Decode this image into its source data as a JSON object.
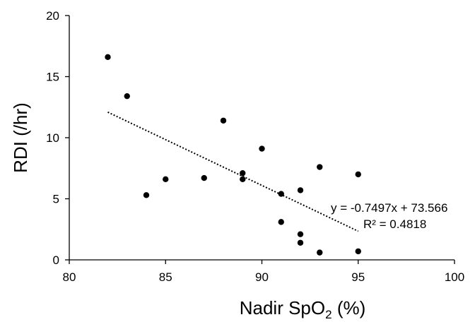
{
  "chart_data": {
    "type": "scatter",
    "title": "",
    "xlabel": {
      "main": "Nadir SpO",
      "subscript": "2",
      "suffix": " (%)"
    },
    "ylabel": "RDI (/hr)",
    "xlim": [
      80,
      100
    ],
    "ylim": [
      0,
      20
    ],
    "xticks": [
      80,
      85,
      90,
      95,
      100
    ],
    "yticks": [
      0,
      5,
      10,
      15,
      20
    ],
    "grid": false,
    "legend": "none",
    "points": [
      {
        "x": 82,
        "y": 16.6
      },
      {
        "x": 83,
        "y": 13.4
      },
      {
        "x": 84,
        "y": 5.3
      },
      {
        "x": 85,
        "y": 6.6
      },
      {
        "x": 87,
        "y": 6.7
      },
      {
        "x": 88,
        "y": 11.4
      },
      {
        "x": 89,
        "y": 7.1
      },
      {
        "x": 89,
        "y": 6.6
      },
      {
        "x": 90,
        "y": 9.1
      },
      {
        "x": 91,
        "y": 5.4
      },
      {
        "x": 91,
        "y": 3.1
      },
      {
        "x": 92,
        "y": 5.7
      },
      {
        "x": 92,
        "y": 2.1
      },
      {
        "x": 92,
        "y": 1.4
      },
      {
        "x": 93,
        "y": 7.6
      },
      {
        "x": 93,
        "y": 0.6
      },
      {
        "x": 95,
        "y": 7.0
      },
      {
        "x": 95,
        "y": 0.7
      }
    ],
    "trendline": {
      "type": "linear",
      "slope": -0.7497,
      "intercept": 73.566,
      "x_range": [
        82,
        95
      ],
      "style": "dotted",
      "equation_label": "y = -0.7497x + 73.566",
      "r2_label": "R² = 0.4818"
    },
    "colors": {
      "marker": "#000000",
      "axis": "#000000",
      "trendline": "#000000"
    }
  }
}
